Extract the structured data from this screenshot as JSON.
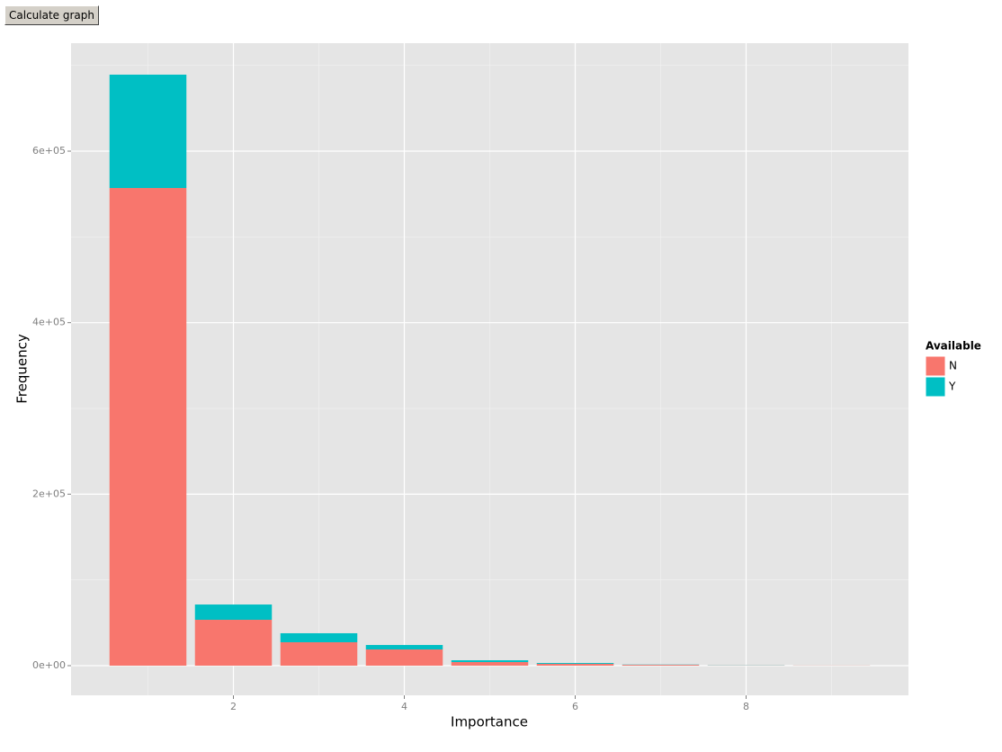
{
  "button": {
    "label": "Calculate graph"
  },
  "chart_data": {
    "type": "stacked_bar",
    "x": [
      1,
      2,
      3,
      4,
      5,
      6,
      7,
      8,
      9
    ],
    "bar_width": 0.9,
    "series": [
      {
        "name": "N",
        "color": "#f8766d",
        "values": [
          557000,
          53500,
          27300,
          18900,
          4200,
          2100,
          1000,
          300,
          200
        ]
      },
      {
        "name": "Y",
        "color": "#00bfc4",
        "values": [
          132200,
          17800,
          10500,
          5200,
          2100,
          1000,
          300,
          200,
          50
        ]
      }
    ],
    "x_label": "Importance",
    "y_label": "Frequency",
    "legend_title": "Available",
    "xlim": [
      0.1,
      9.9
    ],
    "xticks": [
      2,
      4,
      6,
      8
    ],
    "ylim": [
      -34600,
      725900
    ],
    "yticks": [
      {
        "value": 0,
        "label": "0e+00"
      },
      {
        "value": 200000,
        "label": "2e+05"
      },
      {
        "value": 400000,
        "label": "4e+05"
      },
      {
        "value": 600000,
        "label": "6e+05"
      }
    ],
    "grid": true,
    "legend": "right"
  }
}
